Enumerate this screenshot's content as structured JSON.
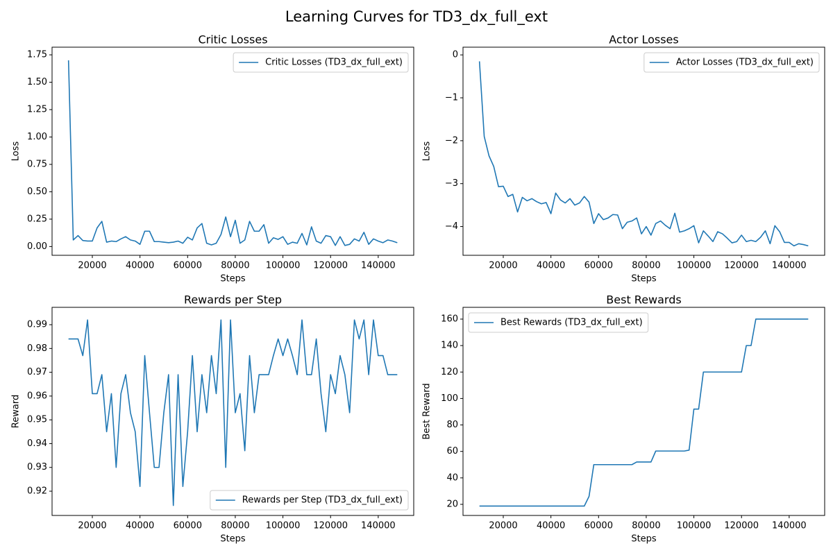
{
  "title": "Learning Curves for TD3_dx_full_ext",
  "chart_data": [
    {
      "type": "line",
      "title": "Critic Losses",
      "xlabel": "Steps",
      "ylabel": "Loss",
      "legend": "upper right",
      "grid": false,
      "x": [
        10000,
        12000,
        14000,
        16000,
        18000,
        20000,
        22000,
        24000,
        26000,
        28000,
        30000,
        32000,
        34000,
        36000,
        38000,
        40000,
        42000,
        44000,
        46000,
        48000,
        50000,
        52000,
        54000,
        56000,
        58000,
        60000,
        62000,
        64000,
        66000,
        68000,
        70000,
        72000,
        74000,
        76000,
        78000,
        80000,
        82000,
        84000,
        86000,
        88000,
        90000,
        92000,
        94000,
        96000,
        98000,
        100000,
        102000,
        104000,
        106000,
        108000,
        110000,
        112000,
        114000,
        116000,
        118000,
        120000,
        122000,
        124000,
        126000,
        128000,
        130000,
        132000,
        134000,
        136000,
        138000,
        140000,
        142000,
        144000,
        146000,
        148000
      ],
      "series": [
        {
          "name": "Critic Losses (TD3_dx_full_ext)",
          "color": "#1f77b4",
          "values": [
            1.7,
            0.06,
            0.1,
            0.055,
            0.05,
            0.05,
            0.17,
            0.23,
            0.04,
            0.05,
            0.045,
            0.07,
            0.09,
            0.06,
            0.05,
            0.02,
            0.14,
            0.14,
            0.045,
            0.045,
            0.04,
            0.035,
            0.04,
            0.05,
            0.03,
            0.085,
            0.06,
            0.17,
            0.21,
            0.03,
            0.015,
            0.03,
            0.11,
            0.27,
            0.09,
            0.24,
            0.03,
            0.06,
            0.23,
            0.14,
            0.14,
            0.2,
            0.03,
            0.08,
            0.065,
            0.09,
            0.02,
            0.04,
            0.03,
            0.12,
            0.015,
            0.18,
            0.05,
            0.03,
            0.1,
            0.09,
            0.01,
            0.09,
            0.01,
            0.02,
            0.07,
            0.05,
            0.13,
            0.02,
            0.07,
            0.05,
            0.035,
            0.06,
            0.05,
            0.035
          ]
        }
      ],
      "xlim": [
        3100,
        154900
      ],
      "xticks": [
        20000,
        40000,
        60000,
        80000,
        100000,
        120000,
        140000
      ],
      "ylim": [
        -0.08,
        1.82
      ],
      "yticks": [
        {
          "value": 0,
          "label": "0.00"
        },
        {
          "value": 0.25,
          "label": "0.25"
        },
        {
          "value": 0.5,
          "label": "0.50"
        },
        {
          "value": 0.75,
          "label": "0.75"
        },
        {
          "value": 1,
          "label": "1.00"
        },
        {
          "value": 1.25,
          "label": "1.25"
        },
        {
          "value": 1.5,
          "label": "1.50"
        },
        {
          "value": 1.75,
          "label": "1.75"
        }
      ]
    },
    {
      "type": "line",
      "title": "Actor Losses",
      "xlabel": "Steps",
      "ylabel": "Loss",
      "legend": "upper right",
      "grid": false,
      "x": [
        10000,
        12000,
        14000,
        16000,
        18000,
        20000,
        22000,
        24000,
        26000,
        28000,
        30000,
        32000,
        34000,
        36000,
        38000,
        40000,
        42000,
        44000,
        46000,
        48000,
        50000,
        52000,
        54000,
        56000,
        58000,
        60000,
        62000,
        64000,
        66000,
        68000,
        70000,
        72000,
        74000,
        76000,
        78000,
        80000,
        82000,
        84000,
        86000,
        88000,
        90000,
        92000,
        94000,
        96000,
        98000,
        100000,
        102000,
        104000,
        106000,
        108000,
        110000,
        112000,
        114000,
        116000,
        118000,
        120000,
        122000,
        124000,
        126000,
        128000,
        130000,
        132000,
        134000,
        136000,
        138000,
        140000,
        142000,
        144000,
        146000,
        148000
      ],
      "series": [
        {
          "name": "Actor Losses (TD3_dx_full_ext)",
          "color": "#1f77b4",
          "values": [
            -0.15,
            -1.9,
            -2.35,
            -2.6,
            -3.07,
            -3.06,
            -3.3,
            -3.25,
            -3.66,
            -3.32,
            -3.4,
            -3.35,
            -3.42,
            -3.47,
            -3.44,
            -3.7,
            -3.22,
            -3.38,
            -3.45,
            -3.35,
            -3.5,
            -3.45,
            -3.3,
            -3.43,
            -3.93,
            -3.7,
            -3.84,
            -3.8,
            -3.72,
            -3.73,
            -4.05,
            -3.9,
            -3.87,
            -3.8,
            -4.17,
            -4.0,
            -4.2,
            -3.93,
            -3.87,
            -3.97,
            -4.05,
            -3.69,
            -4.13,
            -4.1,
            -4.05,
            -3.98,
            -4.38,
            -4.1,
            -4.22,
            -4.35,
            -4.12,
            -4.17,
            -4.27,
            -4.38,
            -4.35,
            -4.2,
            -4.35,
            -4.32,
            -4.35,
            -4.25,
            -4.1,
            -4.4,
            -3.98,
            -4.12,
            -4.37,
            -4.37,
            -4.45,
            -4.4,
            -4.42,
            -4.45
          ]
        }
      ],
      "xlim": [
        3100,
        154900
      ],
      "xticks": [
        20000,
        40000,
        60000,
        80000,
        100000,
        120000,
        140000
      ],
      "ylim": [
        -4.67,
        0.18
      ],
      "yticks": [
        {
          "value": -4,
          "label": "−4"
        },
        {
          "value": -3,
          "label": "−3"
        },
        {
          "value": -2,
          "label": "−2"
        },
        {
          "value": -1,
          "label": "−1"
        },
        0
      ]
    },
    {
      "type": "line",
      "title": "Rewards per Step",
      "xlabel": "Steps",
      "ylabel": "Reward",
      "legend": "lower right",
      "grid": false,
      "x": [
        10000,
        12000,
        14000,
        16000,
        18000,
        20000,
        22000,
        24000,
        26000,
        28000,
        30000,
        32000,
        34000,
        36000,
        38000,
        40000,
        42000,
        44000,
        46000,
        48000,
        50000,
        52000,
        54000,
        56000,
        58000,
        60000,
        62000,
        64000,
        66000,
        68000,
        70000,
        72000,
        74000,
        76000,
        78000,
        80000,
        82000,
        84000,
        86000,
        88000,
        90000,
        92000,
        94000,
        96000,
        98000,
        100000,
        102000,
        104000,
        106000,
        108000,
        110000,
        112000,
        114000,
        116000,
        118000,
        120000,
        122000,
        124000,
        126000,
        128000,
        130000,
        132000,
        134000,
        136000,
        138000,
        140000,
        142000,
        144000,
        146000,
        148000
      ],
      "series": [
        {
          "name": "Rewards per Step (TD3_dx_full_ext)",
          "color": "#1f77b4",
          "values": [
            0.984,
            0.984,
            0.984,
            0.977,
            0.992,
            0.961,
            0.961,
            0.969,
            0.945,
            0.961,
            0.93,
            0.961,
            0.969,
            0.953,
            0.945,
            0.922,
            0.977,
            0.953,
            0.93,
            0.93,
            0.953,
            0.969,
            0.914,
            0.969,
            0.922,
            0.945,
            0.977,
            0.945,
            0.969,
            0.953,
            0.977,
            0.961,
            0.992,
            0.93,
            0.992,
            0.953,
            0.961,
            0.937,
            0.977,
            0.953,
            0.969,
            0.969,
            0.969,
            0.977,
            0.984,
            0.977,
            0.984,
            0.977,
            0.969,
            0.992,
            0.969,
            0.969,
            0.984,
            0.961,
            0.945,
            0.969,
            0.961,
            0.977,
            0.969,
            0.953,
            0.992,
            0.984,
            0.992,
            0.969,
            0.992,
            0.977,
            0.977,
            0.969,
            0.969,
            0.969
          ]
        }
      ],
      "xlim": [
        3100,
        154900
      ],
      "xticks": [
        20000,
        40000,
        60000,
        80000,
        100000,
        120000,
        140000
      ],
      "ylim": [
        0.9098,
        0.9973
      ],
      "yticks": [
        0.92,
        0.93,
        0.94,
        0.95,
        0.96,
        0.97,
        0.98,
        0.99
      ]
    },
    {
      "type": "line",
      "title": "Best Rewards",
      "xlabel": "Steps",
      "ylabel": "Best Reward",
      "legend": "upper left",
      "grid": false,
      "x": [
        10000,
        12000,
        14000,
        16000,
        18000,
        20000,
        22000,
        24000,
        26000,
        28000,
        30000,
        32000,
        34000,
        36000,
        38000,
        40000,
        42000,
        44000,
        46000,
        48000,
        50000,
        52000,
        54000,
        56000,
        58000,
        60000,
        62000,
        64000,
        66000,
        68000,
        70000,
        72000,
        74000,
        76000,
        78000,
        80000,
        82000,
        84000,
        86000,
        88000,
        90000,
        92000,
        94000,
        96000,
        98000,
        100000,
        102000,
        104000,
        106000,
        108000,
        110000,
        112000,
        114000,
        116000,
        118000,
        120000,
        122000,
        124000,
        126000,
        128000,
        130000,
        132000,
        134000,
        136000,
        138000,
        140000,
        142000,
        144000,
        146000,
        148000
      ],
      "series": [
        {
          "name": "Best Rewards (TD3_dx_full_ext)",
          "color": "#1f77b4",
          "values": [
            18.7,
            18.7,
            18.7,
            18.7,
            18.7,
            18.7,
            18.7,
            18.7,
            18.7,
            18.7,
            18.7,
            18.7,
            18.7,
            18.7,
            18.7,
            18.7,
            18.7,
            18.7,
            18.7,
            18.7,
            18.7,
            18.7,
            18.7,
            26,
            50,
            50,
            50,
            50,
            50,
            50,
            50,
            50,
            50,
            52,
            52,
            52,
            52,
            60.3,
            60.3,
            60.3,
            60.3,
            60.3,
            60.3,
            60.3,
            61,
            92,
            92,
            120,
            120,
            120,
            120,
            120,
            120,
            120,
            120,
            120,
            140,
            140,
            160,
            160,
            160,
            160,
            160,
            160,
            160,
            160,
            160,
            160,
            160,
            160
          ]
        }
      ],
      "xlim": [
        3100,
        154900
      ],
      "xticks": [
        20000,
        40000,
        60000,
        80000,
        100000,
        120000,
        140000
      ],
      "ylim": [
        11.6,
        168.9
      ],
      "yticks": [
        20,
        40,
        60,
        80,
        100,
        120,
        140,
        160
      ]
    }
  ]
}
